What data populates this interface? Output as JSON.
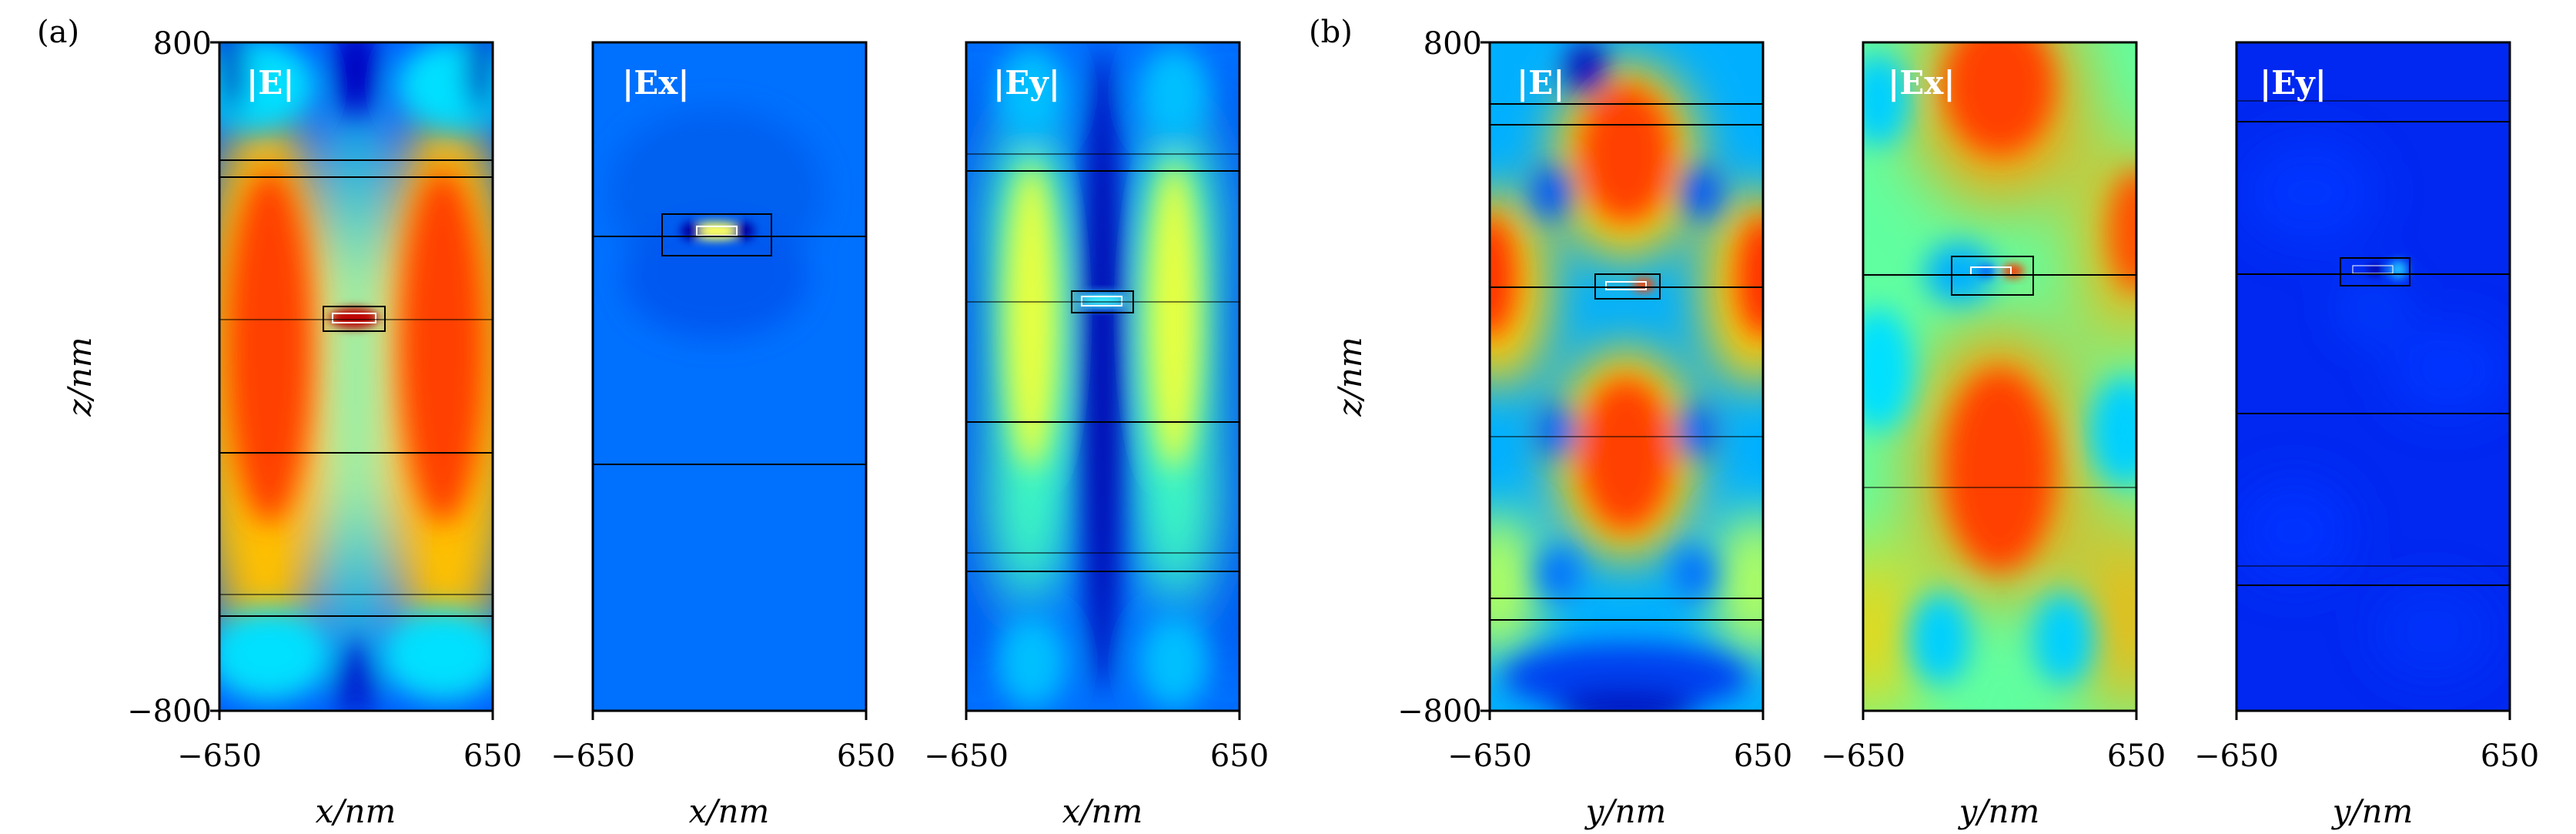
{
  "chart_data": {
    "type": "heatmap",
    "colormap": [
      "#00008f",
      "#0000ff",
      "#0080ff",
      "#00ffff",
      "#80ff80",
      "#ffff00",
      "#ff8000",
      "#ff0000",
      "#800000"
    ],
    "groups": [
      {
        "letter": "(a)",
        "xlabel": "x/nm",
        "ylabel": "z/nm",
        "ylim": [
          -800,
          800
        ],
        "yticks": [
          "800",
          "−800"
        ],
        "panels": [
          {
            "label": "|E|",
            "xlim": [
              -650,
              650
            ],
            "xticks": [
              "−650",
              "650"
            ]
          },
          {
            "label": "|Ex|",
            "xlim": [
              -650,
              650
            ],
            "xticks": [
              "−650",
              "650"
            ]
          },
          {
            "label": "|Ey|",
            "xlim": [
              -650,
              650
            ],
            "xticks": [
              "−650",
              "650"
            ]
          }
        ]
      },
      {
        "letter": "(b)",
        "xlabel": "y/nm",
        "ylabel": "z/nm",
        "ylim": [
          -800,
          800
        ],
        "yticks": [
          "800",
          "−800"
        ],
        "panels": [
          {
            "label": "|E|",
            "xlim": [
              -650,
              650
            ],
            "xticks": [
              "−650",
              "650"
            ]
          },
          {
            "label": "|Ex|",
            "xlim": [
              -650,
              650
            ],
            "xticks": [
              "−650",
              "650"
            ]
          },
          {
            "label": "|Ey|",
            "xlim": [
              -650,
              650
            ],
            "xticks": [
              "−650",
              "650"
            ]
          }
        ]
      }
    ]
  }
}
